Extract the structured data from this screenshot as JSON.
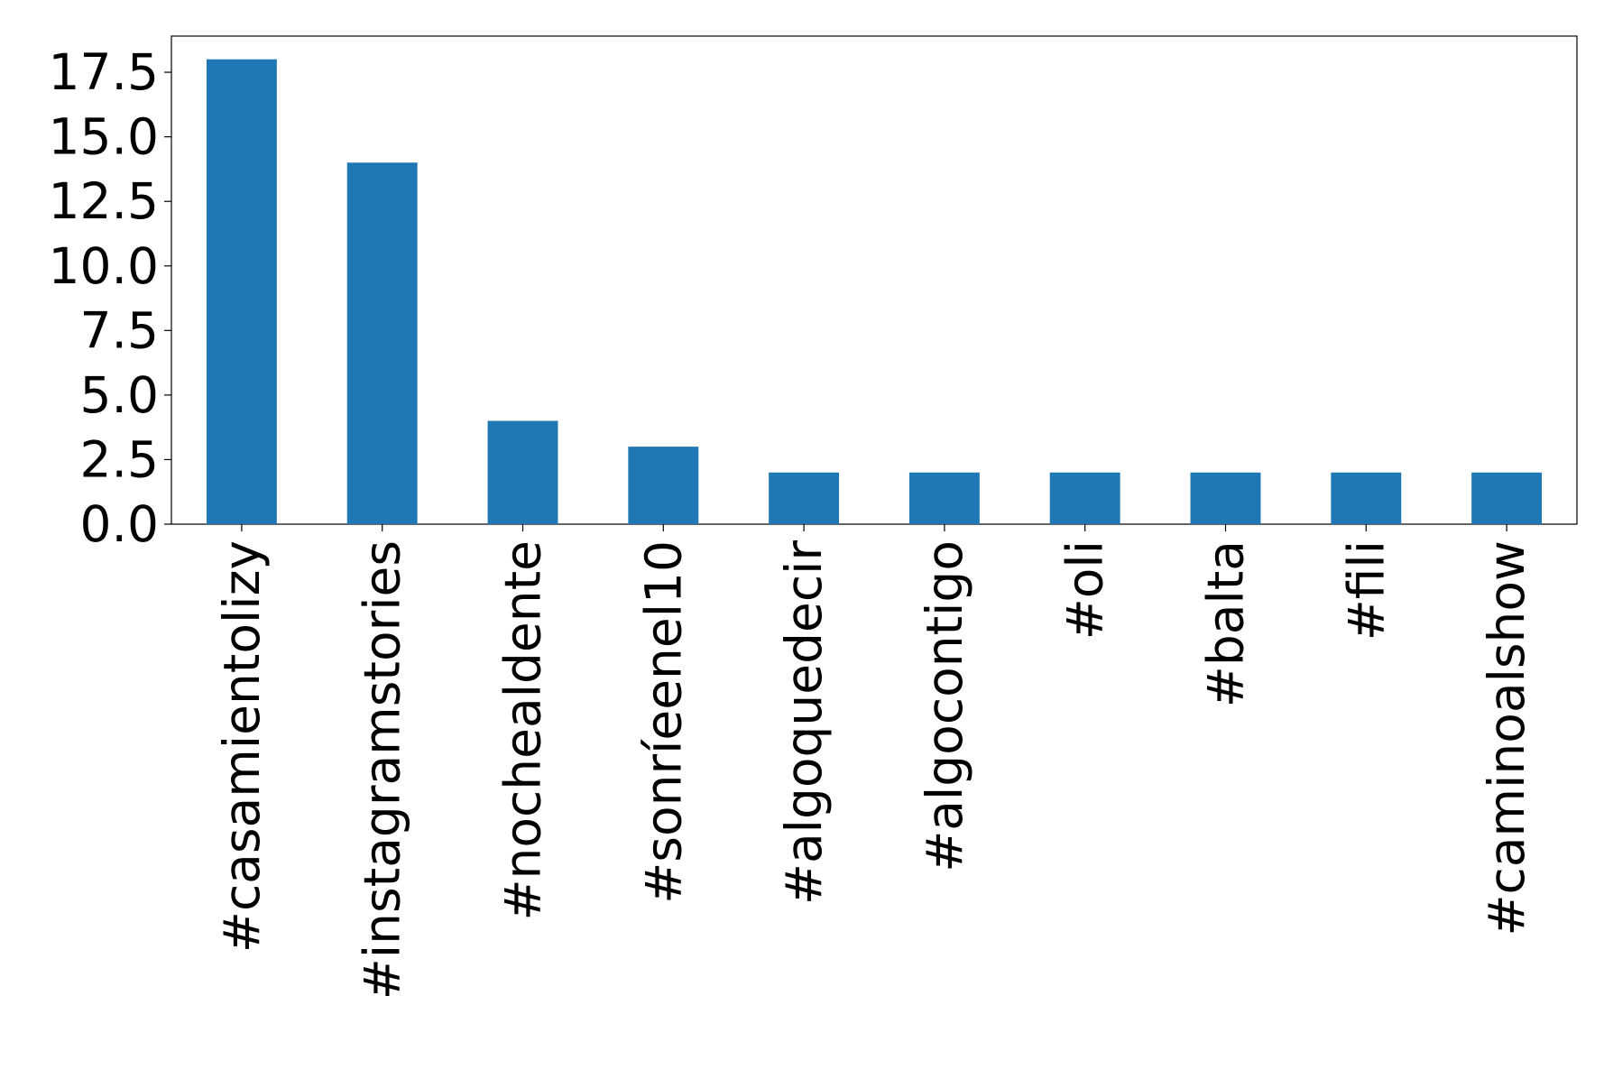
{
  "chart_data": {
    "type": "bar",
    "categories": [
      "#casamientolizy",
      "#instagramstories",
      "#nochealdente",
      "#sonríeenel10",
      "#algoquedecir",
      "#algocontigo",
      "#oli",
      "#balta",
      "#fili",
      "#caminoalshow"
    ],
    "values": [
      18,
      14,
      4,
      3,
      2,
      2,
      2,
      2,
      2,
      2
    ],
    "color": "#1f77b4",
    "ylim": [
      0,
      18.9
    ],
    "yticks": [
      {
        "value": 0,
        "label": "0.0"
      },
      2.5,
      {
        "value": 5,
        "label": "5.0"
      },
      7.5,
      {
        "value": 10,
        "label": "10.0"
      },
      12.5,
      {
        "value": 15,
        "label": "15.0"
      },
      17.5
    ],
    "grid": false
  }
}
